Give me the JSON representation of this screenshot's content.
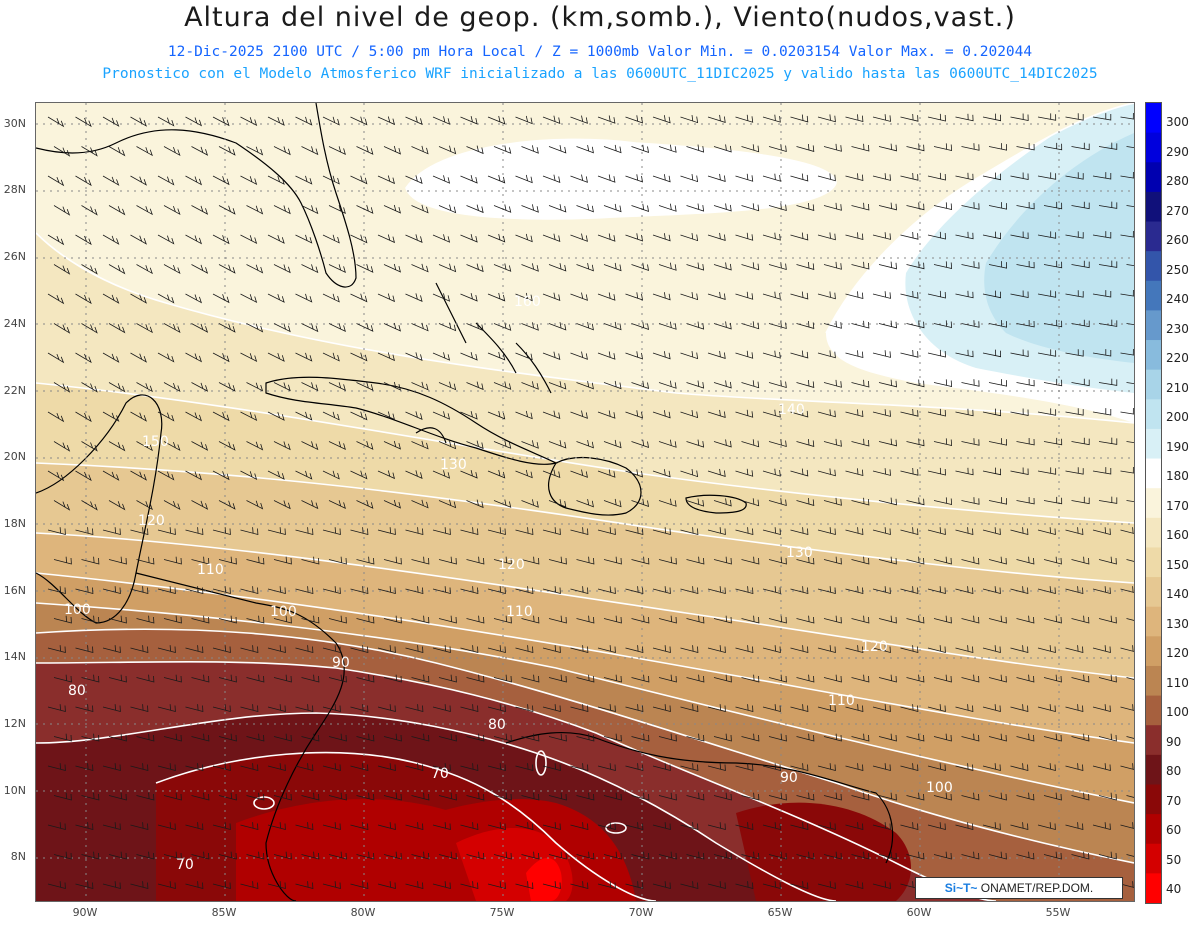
{
  "header": {
    "title": "Altura del nivel de geop. (km,somb.), Viento(nudos,vast.)",
    "line1": "12-Dic-2025  2100 UTC / 5:00 pm Hora Local / Z = 1000mb  Valor Min. = 0.0203154  Valor Max. = 0.202044",
    "line2": "Pronostico con el Modelo Atmosferico WRF inicializado a las 0600UTC_11DIC2025 y valido hasta las  0600UTC_14DIC2025"
  },
  "axes": {
    "lat_labels": [
      "30N",
      "28N",
      "26N",
      "24N",
      "22N",
      "20N",
      "18N",
      "16N",
      "14N",
      "12N",
      "10N",
      "8N"
    ],
    "lon_labels": [
      "90W",
      "85W",
      "80W",
      "75W",
      "70W",
      "65W",
      "60W",
      "55W"
    ]
  },
  "colorbar": {
    "labels": [
      "300",
      "290",
      "280",
      "270",
      "260",
      "250",
      "240",
      "230",
      "220",
      "210",
      "200",
      "190",
      "180",
      "170",
      "160",
      "150",
      "140",
      "130",
      "120",
      "110",
      "100",
      "90",
      "80",
      "70",
      "60",
      "50",
      "40"
    ],
    "colors": [
      "#0000ff",
      "#0000dd",
      "#0000b0",
      "#10107a",
      "#2a2a90",
      "#3355aa",
      "#4477bb",
      "#6699cc",
      "#88bbdd",
      "#a8d4e8",
      "#c0e4f0",
      "#d8f0f6",
      "#ffffff",
      "#faf4dc",
      "#f4e7c0",
      "#eedaa8",
      "#e6c892",
      "#deb57c",
      "#d09f65",
      "#bb8552",
      "#a6603e",
      "#8a2e2c",
      "#6e1418",
      "#8a0808",
      "#b00000",
      "#d40000",
      "#ff0000"
    ]
  },
  "contours": [
    "160",
    "150",
    "140",
    "130",
    "130",
    "120",
    "120",
    "120",
    "110",
    "110",
    "110",
    "100",
    "100",
    "100",
    "90",
    "90",
    "80",
    "80",
    "70",
    "70"
  ],
  "credit": {
    "logo": "Si~T~",
    "text": " ONAMET/REP.DOM."
  }
}
